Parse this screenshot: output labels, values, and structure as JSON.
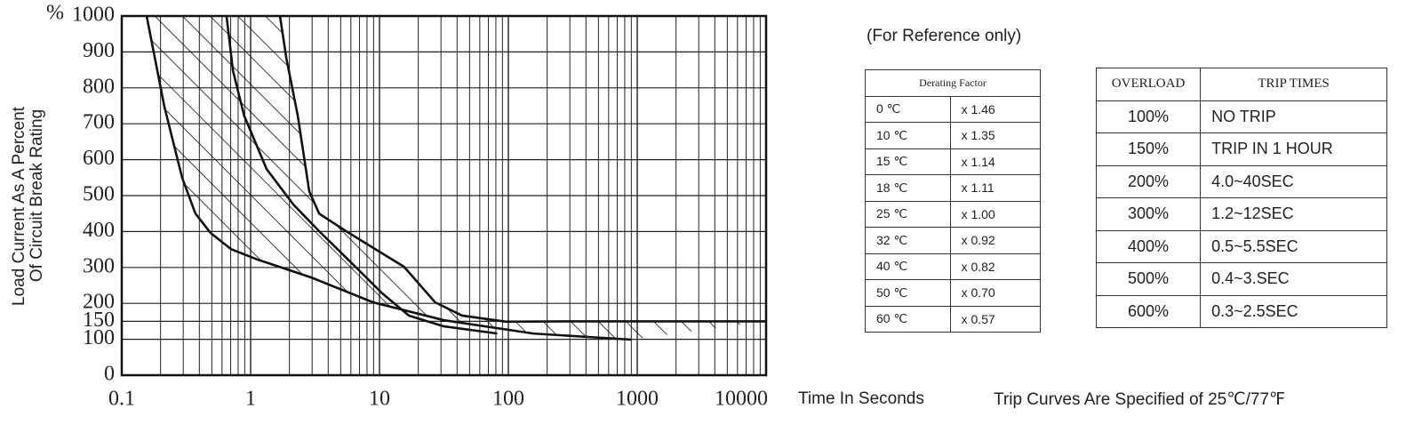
{
  "chart_data": {
    "type": "line",
    "y_label": [
      "Load Current As A Percent",
      "Of Circuit Break Rating"
    ],
    "y_unit": "%",
    "x_label": "Time In Seconds",
    "xscale": "log",
    "xlim": [
      0.1,
      10000
    ],
    "xticks": [
      0.1,
      1,
      10,
      100,
      1000,
      10000
    ],
    "ylim": [
      0,
      1000
    ],
    "yticks": [
      0,
      100,
      150,
      200,
      300,
      400,
      500,
      600,
      700,
      800,
      900,
      1000
    ],
    "grid": true,
    "minor_grid": true,
    "hatch": true,
    "series": [
      {
        "color": "#111111",
        "x": [
          0.156,
          0.214,
          0.294,
          0.373,
          0.489,
          0.705,
          1.13,
          2.96,
          8.9,
          31.7,
          156,
          904
        ],
        "values": [
          1000,
          748,
          550,
          450,
          396,
          351,
          322,
          272,
          203,
          153,
          116,
          99
        ]
      },
      {
        "color": "#111111",
        "x": [
          0.65,
          0.73,
          0.89,
          1.33,
          2.15,
          3.4,
          6.5,
          10.5,
          16.9,
          31.7,
          82
        ],
        "values": [
          1000,
          847,
          723,
          574,
          475,
          401,
          302,
          228,
          166,
          136,
          116
        ]
      },
      {
        "color": "#111111",
        "x": [
          1.69,
          1.89,
          2.32,
          2.85,
          3.4,
          5.5,
          10.5,
          15.5,
          27,
          43.7,
          96,
          290,
          10000
        ],
        "values": [
          1000,
          884,
          723,
          512,
          450,
          401,
          339,
          302,
          203,
          166,
          149,
          150,
          150
        ]
      }
    ]
  },
  "footnote": "Trip Curves Are Specified of 25℃/77℉",
  "note": "(For Reference only)",
  "derating_table": {
    "header": "Derating Factor",
    "rows": [
      [
        "0 ℃",
        "x 1.46"
      ],
      [
        "10 ℃",
        "x 1.35"
      ],
      [
        "15 ℃",
        "x 1.14"
      ],
      [
        "18 ℃",
        "x 1.11"
      ],
      [
        "25 ℃",
        "x 1.00"
      ],
      [
        "32 ℃",
        "x 0.92"
      ],
      [
        "40 ℃",
        "x 0.82"
      ],
      [
        "50 ℃",
        "x 0.70"
      ],
      [
        "60 ℃",
        "x 0.57"
      ]
    ]
  },
  "trip_table": {
    "headers": [
      "OVERLOAD",
      "TRIP TIMES"
    ],
    "rows": [
      [
        "100%",
        "NO TRIP"
      ],
      [
        "150%",
        "TRIP IN 1 HOUR"
      ],
      [
        "200%",
        "4.0~40SEC"
      ],
      [
        "300%",
        "1.2~12SEC"
      ],
      [
        "400%",
        "0.5~5.5SEC"
      ],
      [
        "500%",
        "0.4~3.SEC"
      ],
      [
        "600%",
        "0.3~2.5SEC"
      ]
    ]
  }
}
